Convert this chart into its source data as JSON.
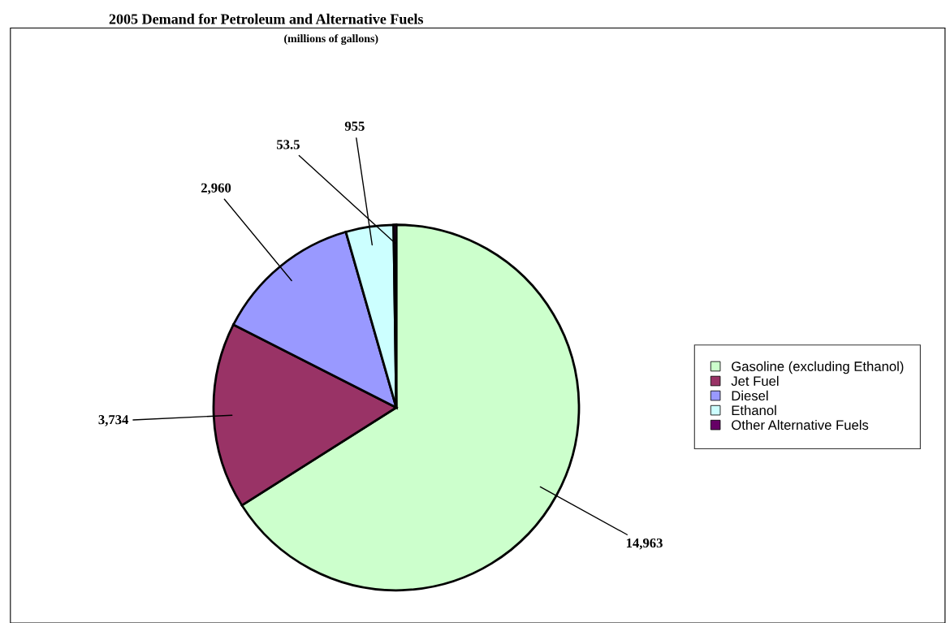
{
  "chart_data": {
    "type": "pie",
    "title": "2005 Demand for Petroleum and Alternative Fuels",
    "subtitle": "(millions of gallons)",
    "categories": [
      "Gasoline (excluding Ethanol)",
      "Jet Fuel",
      "Diesel",
      "Ethanol",
      "Other Alternative Fuels"
    ],
    "values": [
      14963,
      3734,
      2960,
      955,
      53.5
    ],
    "value_labels": [
      "14,963",
      "3,734",
      "2,960",
      "955",
      "53.5"
    ],
    "colors": [
      "#ccffcc",
      "#993366",
      "#9999ff",
      "#ccffff",
      "#660066"
    ],
    "legend": "right"
  }
}
